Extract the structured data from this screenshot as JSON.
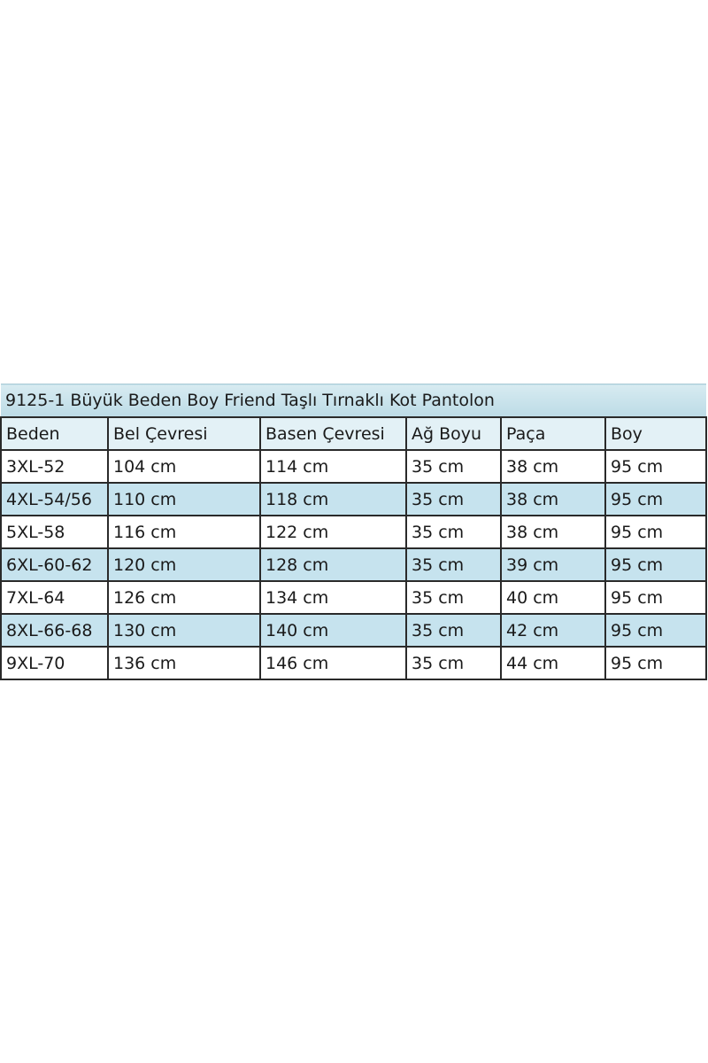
{
  "title": "9125-1 Büyük Beden Boy Friend Taşlı Tırnaklı Kot Pantolon",
  "columns": [
    "Beden",
    "Bel Çevresi",
    "Basen Çevresi",
    "Ağ Boyu",
    "Paça",
    "Boy"
  ],
  "rows": [
    [
      "3XL-52",
      "104 cm",
      "114 cm",
      "35 cm",
      "38 cm",
      "95 cm"
    ],
    [
      "4XL-54/56",
      "110 cm",
      "118 cm",
      "35 cm",
      "38 cm",
      "95 cm"
    ],
    [
      "5XL-58",
      "116 cm",
      "122 cm",
      "35 cm",
      "38 cm",
      "95 cm"
    ],
    [
      "6XL-60-62",
      "120 cm",
      "128 cm",
      "35 cm",
      "39 cm",
      "95 cm"
    ],
    [
      "7XL-64",
      "126 cm",
      "134 cm",
      "35 cm",
      "40 cm",
      "95 cm"
    ],
    [
      "8XL-66-68",
      "130 cm",
      "140 cm",
      "35 cm",
      "42 cm",
      "95 cm"
    ],
    [
      "9XL-70",
      "136 cm",
      "146 cm",
      "35 cm",
      "44 cm",
      "95 cm"
    ]
  ],
  "colors": {
    "title_bg": "#c5e0ea",
    "header_bg": "#e3f1f6",
    "stripe_bg": "#c6e3ee",
    "border": "#2a2a2a"
  }
}
